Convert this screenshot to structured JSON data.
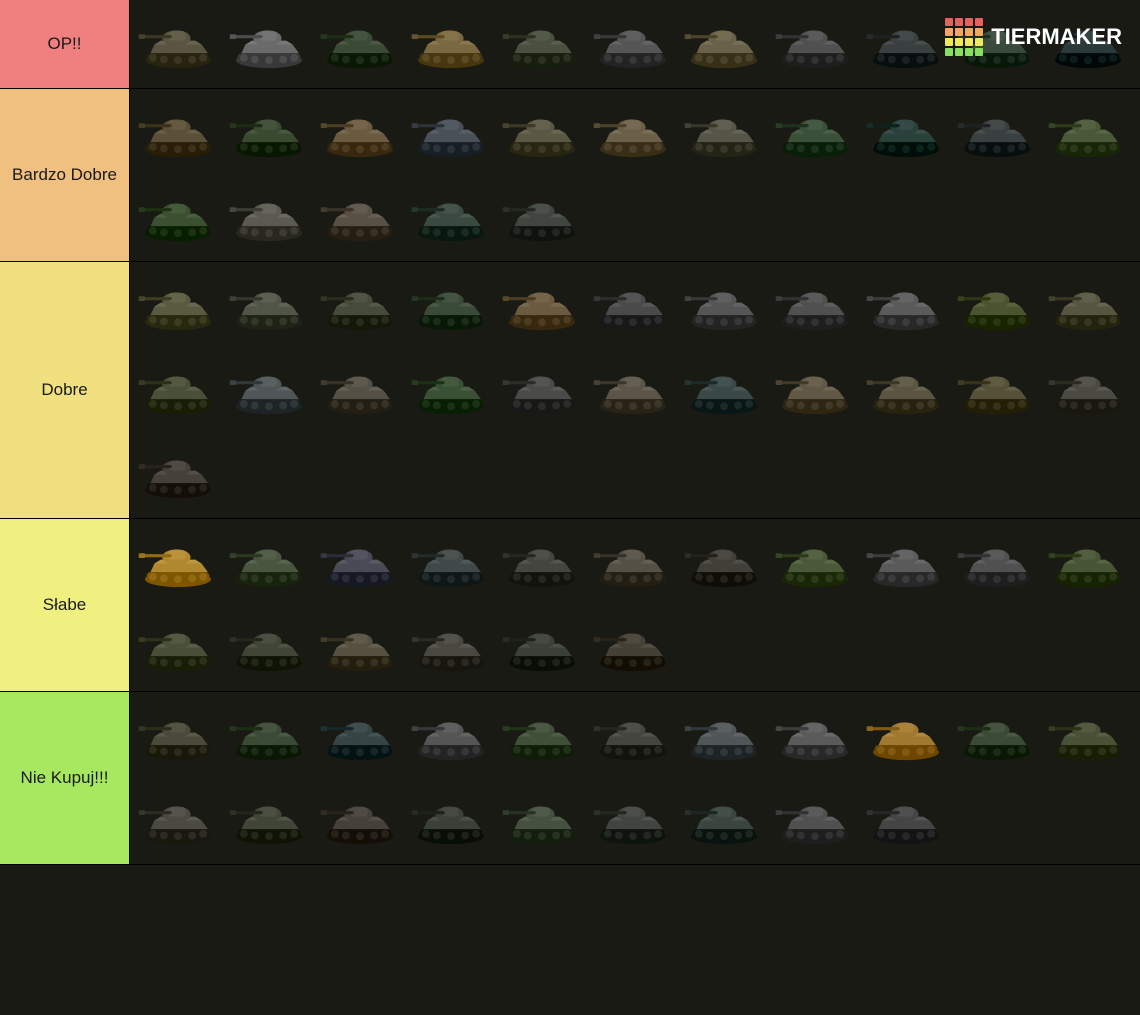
{
  "background_color": "#1a1a14",
  "logo": {
    "text": "TIERMAKER",
    "grid_colors": [
      "#e86060",
      "#e86060",
      "#e86060",
      "#e86060",
      "#f0a860",
      "#f0a860",
      "#f0a860",
      "#f0a860",
      "#f0e860",
      "#f0e860",
      "#f0e860",
      "#f0e860",
      "#88e060",
      "#88e060",
      "#88e060",
      "#88e060"
    ]
  },
  "tiers": [
    {
      "label": "OP!!",
      "color": "#f08080",
      "items": [
        {
          "hull": "#5a5540",
          "turret": "#5a5540"
        },
        {
          "hull": "#6a6a6a",
          "turret": "#6a6a6a"
        },
        {
          "hull": "#3a4a35",
          "turret": "#3a4a35"
        },
        {
          "hull": "#7a6840",
          "turret": "#7a6840"
        },
        {
          "hull": "#4a5040",
          "turret": "#4a5040"
        },
        {
          "hull": "#555555",
          "turret": "#555555"
        },
        {
          "hull": "#6a6248",
          "turret": "#6a6248"
        },
        {
          "hull": "#505050",
          "turret": "#505050"
        },
        {
          "hull": "#3a4040",
          "turret": "#3a4040"
        },
        {
          "hull": "#3a4a3a",
          "turret": "#3a4a3a"
        },
        {
          "hull": "#2a3a3a",
          "turret": "#2a3a3a"
        }
      ]
    },
    {
      "label": "Bardzo Dobre",
      "color": "#f0c080",
      "items": [
        {
          "hull": "#5a5038",
          "turret": "#5a5038"
        },
        {
          "hull": "#3a4a30",
          "turret": "#3a4a30"
        },
        {
          "hull": "#6a5a40",
          "turret": "#6a5a40"
        },
        {
          "hull": "#4a5058",
          "turret": "#4a5058"
        },
        {
          "hull": "#5a5842",
          "turret": "#5a5842"
        },
        {
          "hull": "#6a6048",
          "turret": "#6a6048"
        },
        {
          "hull": "#555548",
          "turret": "#555548"
        },
        {
          "hull": "#3a5038",
          "turret": "#3a5038"
        },
        {
          "hull": "#2a403a",
          "turret": "#2a403a"
        },
        {
          "hull": "#3a4040",
          "turret": "#3a4040"
        },
        {
          "hull": "#4a5838",
          "turret": "#4a5838"
        },
        {
          "hull": "#3a5030",
          "turret": "#3a5030"
        },
        {
          "hull": "#5a5a50",
          "turret": "#5a5a50"
        },
        {
          "hull": "#585045",
          "turret": "#585045"
        },
        {
          "hull": "#3a4a40",
          "turret": "#3a4a40"
        },
        {
          "hull": "#404540",
          "turret": "#404540"
        }
      ]
    },
    {
      "label": "Dobre",
      "color": "#f0e080",
      "items": [
        {
          "hull": "#5a5a40",
          "turret": "#5a5a40"
        },
        {
          "hull": "#505548",
          "turret": "#505548"
        },
        {
          "hull": "#454a3a",
          "turret": "#454a3a"
        },
        {
          "hull": "#3a4a38",
          "turret": "#3a4a38"
        },
        {
          "hull": "#6a5a40",
          "turret": "#6a5a40"
        },
        {
          "hull": "#4a4a4a",
          "turret": "#4a4a4a"
        },
        {
          "hull": "#555555",
          "turret": "#555555"
        },
        {
          "hull": "#505050",
          "turret": "#505050"
        },
        {
          "hull": "#5a5a5a",
          "turret": "#5a5a5a"
        },
        {
          "hull": "#4a5530",
          "turret": "#4a5530"
        },
        {
          "hull": "#555540",
          "turret": "#555540"
        },
        {
          "hull": "#4a5038",
          "turret": "#4a5038"
        },
        {
          "hull": "#505558",
          "turret": "#505558"
        },
        {
          "hull": "#555045",
          "turret": "#555045"
        },
        {
          "hull": "#3a5035",
          "turret": "#3a5035"
        },
        {
          "hull": "#4a4a48",
          "turret": "#4a4a48"
        },
        {
          "hull": "#5a5548",
          "turret": "#5a5548"
        },
        {
          "hull": "#3a4848",
          "turret": "#3a4848"
        },
        {
          "hull": "#605845",
          "turret": "#605845"
        },
        {
          "hull": "#5a5540",
          "turret": "#5a5540"
        },
        {
          "hull": "#555038",
          "turret": "#555038"
        },
        {
          "hull": "#4a4a40",
          "turret": "#4a4a40"
        },
        {
          "hull": "#454038",
          "turret": "#454038"
        }
      ]
    },
    {
      "label": "Słabe",
      "color": "#f0f080",
      "items": [
        {
          "hull": "#b08830",
          "turret": "#b08830"
        },
        {
          "hull": "#4a5540",
          "turret": "#4a5540"
        },
        {
          "hull": "#484a55",
          "turret": "#484a55"
        },
        {
          "hull": "#404848",
          "turret": "#404848"
        },
        {
          "hull": "#454540",
          "turret": "#454540"
        },
        {
          "hull": "#555045",
          "turret": "#555045"
        },
        {
          "hull": "#404038",
          "turret": "#404038"
        },
        {
          "hull": "#4a5a38",
          "turret": "#4a5a38"
        },
        {
          "hull": "#5a5a5a",
          "turret": "#5a5a5a"
        },
        {
          "hull": "#505050",
          "turret": "#505050"
        },
        {
          "hull": "#485535",
          "turret": "#485535"
        },
        {
          "hull": "#4a5038",
          "turret": "#4a5038"
        },
        {
          "hull": "#404538",
          "turret": "#404538"
        },
        {
          "hull": "#555040",
          "turret": "#555040"
        },
        {
          "hull": "#484840",
          "turret": "#484840"
        },
        {
          "hull": "#3a4038",
          "turret": "#3a4038"
        },
        {
          "hull": "#454035",
          "turret": "#454035"
        }
      ]
    },
    {
      "label": "Nie Kupuj!!!",
      "color": "#a8e860",
      "items": [
        {
          "hull": "#4a4a3a",
          "turret": "#4a4a3a"
        },
        {
          "hull": "#3a4a35",
          "turret": "#3a4a35"
        },
        {
          "hull": "#354545",
          "turret": "#354545"
        },
        {
          "hull": "#555555",
          "turret": "#555555"
        },
        {
          "hull": "#405038",
          "turret": "#405038"
        },
        {
          "hull": "#454540",
          "turret": "#454540"
        },
        {
          "hull": "#505558",
          "turret": "#505558"
        },
        {
          "hull": "#5a5a5a",
          "turret": "#5a5a5a"
        },
        {
          "hull": "#a07830",
          "turret": "#a07830"
        },
        {
          "hull": "#3a4a35",
          "turret": "#3a4a35"
        },
        {
          "hull": "#485035",
          "turret": "#485035"
        },
        {
          "hull": "#4a4a40",
          "turret": "#4a4a40"
        },
        {
          "hull": "#404538",
          "turret": "#404538"
        },
        {
          "hull": "#454038",
          "turret": "#454038"
        },
        {
          "hull": "#3a4038",
          "turret": "#3a4038"
        },
        {
          "hull": "#455040",
          "turret": "#455040"
        },
        {
          "hull": "#404540",
          "turret": "#404540"
        },
        {
          "hull": "#3a4540",
          "turret": "#3a4540"
        },
        {
          "hull": "#505050",
          "turret": "#505050"
        },
        {
          "hull": "#454545",
          "turret": "#454545"
        }
      ]
    }
  ]
}
